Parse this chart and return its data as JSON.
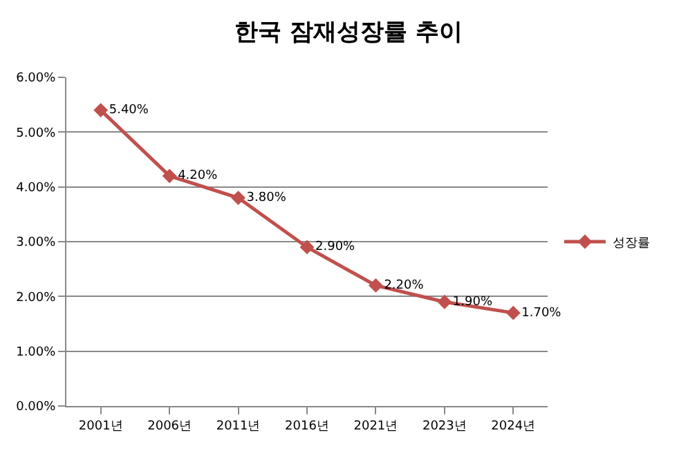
{
  "chart_data": {
    "type": "line",
    "title": "한국 잠재성장률 추이",
    "categories": [
      "2001년",
      "2006년",
      "2011년",
      "2016년",
      "2021년",
      "2023년",
      "2024년"
    ],
    "series": [
      {
        "name": "성장률",
        "color": "#c0504d",
        "values": [
          5.4,
          4.2,
          3.8,
          2.9,
          2.2,
          1.9,
          1.7
        ],
        "value_labels": [
          "5.40%",
          "4.20%",
          "3.80%",
          "2.90%",
          "2.20%",
          "1.90%",
          "1.70%"
        ]
      }
    ],
    "ylim": [
      0,
      6
    ],
    "yticks": [
      {
        "value": 0,
        "label": "0.00%"
      },
      {
        "value": 1,
        "label": "1.00%"
      },
      {
        "value": 2,
        "label": "2.00%"
      },
      {
        "value": 3,
        "label": "3.00%"
      },
      {
        "value": 4,
        "label": "4.00%"
      },
      {
        "value": 5,
        "label": "5.00%"
      },
      {
        "value": 6,
        "label": "6.00%"
      }
    ],
    "grid": "y",
    "legend": "right",
    "marker": "diamond",
    "line_style": "solid"
  }
}
